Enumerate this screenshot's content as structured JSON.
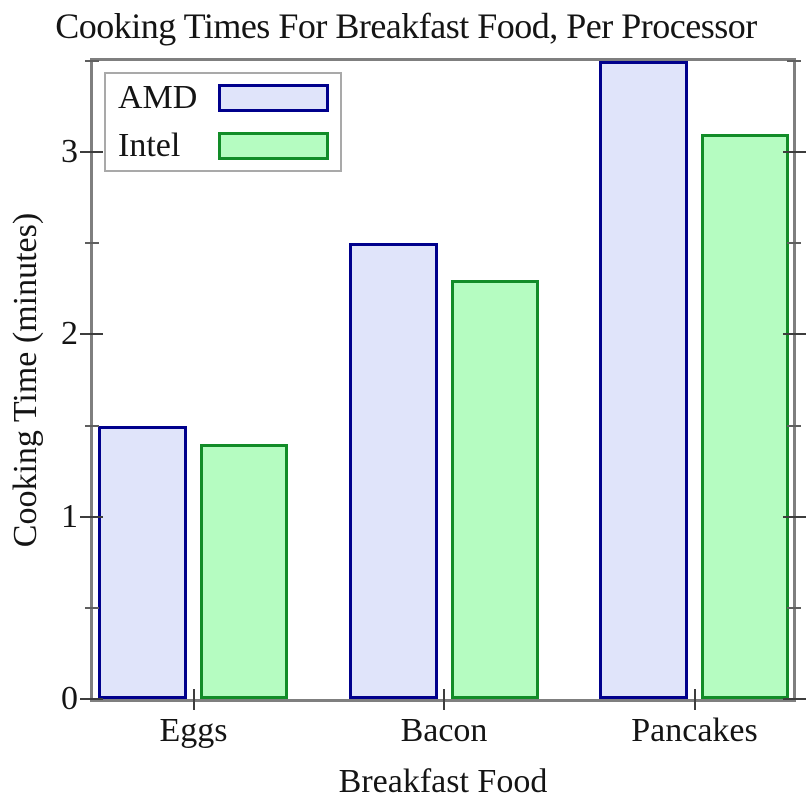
{
  "chart_data": {
    "type": "bar",
    "title": "Cooking Times For Breakfast Food, Per Processor",
    "xlabel": "Breakfast Food",
    "ylabel": "Cooking Time (minutes)",
    "categories": [
      "Eggs",
      "Bacon",
      "Pancakes"
    ],
    "series": [
      {
        "name": "AMD",
        "values": [
          1.5,
          2.5,
          3.5
        ],
        "fill_color": "#e0e4fa",
        "border_color": "#00008c"
      },
      {
        "name": "Intel",
        "values": [
          1.4,
          2.3,
          3.1
        ],
        "fill_color": "#b5fcc1",
        "border_color": "#128c28"
      }
    ],
    "ylim": [
      0,
      3.5
    ],
    "y_major_ticks": [
      0,
      1,
      2,
      3
    ],
    "y_minor_ticks": [
      0.5,
      1.5,
      2.5,
      3.5
    ],
    "grid": false,
    "legend_position": "top-left",
    "frame_color": "#7f7f7f",
    "tick_color": "#3d3d3d",
    "text_color": "#141414"
  }
}
